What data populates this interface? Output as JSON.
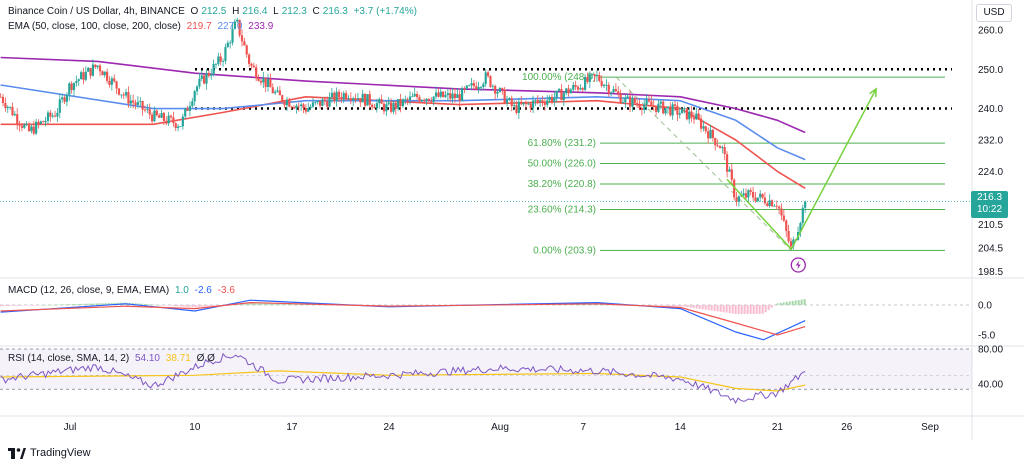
{
  "header": {
    "symbol": "Binance Coin / US Dollar, 4h, BINANCE",
    "o_label": "O",
    "o": "212.5",
    "h_label": "H",
    "h": "216.4",
    "l_label": "L",
    "l": "212.3",
    "c_label": "C",
    "c": "216.3",
    "change": "+3.7 (+1.74%)"
  },
  "ema_legend": {
    "label": "EMA (50, close, 100, close, 200, close)",
    "v50": "219.7",
    "v100": "227.0",
    "v200": "233.9"
  },
  "macd_legend": {
    "label": "MACD (12, 26, close, 9, EMA, EMA)",
    "hist": "1.0",
    "macd": "-2.6",
    "signal": "-3.6"
  },
  "rsi_legend": {
    "label": "RSI (14, close, SMA, 14, 2)",
    "rsi": "54.10",
    "ma": "38.71",
    "extra": "Ø Ø"
  },
  "currency_button": "USD",
  "last_price": "216.3",
  "countdown": "10:22",
  "branding": "TradingView",
  "colors": {
    "up": "#26a69a",
    "down": "#ef5350",
    "ema50": "#ef5350",
    "ema100": "#5b8def",
    "ema200": "#9c27b0",
    "fib": "#4caf50",
    "projection": "#76d13c"
  },
  "chart_data": {
    "type": "line",
    "title": "Binance Coin / US Dollar, 4h, BINANCE",
    "xlabel": "",
    "ylabel": "",
    "x_ticks": [
      "Jul",
      "10",
      "17",
      "24",
      "Aug",
      "7",
      "14",
      "21",
      "26",
      "Sep"
    ],
    "y_ticks": [
      "260.0",
      "250.0",
      "240.0",
      "232.0",
      "224.0",
      "216.3",
      "210.5",
      "204.5",
      "198.5"
    ],
    "ylim": [
      198.5,
      262
    ],
    "price_path": [
      {
        "d": "Jun 26",
        "c": 243
      },
      {
        "d": "Jun 28",
        "c": 234
      },
      {
        "d": "Jun 30",
        "c": 239
      },
      {
        "d": "Jul 1",
        "c": 246
      },
      {
        "d": "Jul 3",
        "c": 251
      },
      {
        "d": "Jul 5",
        "c": 243
      },
      {
        "d": "Jul 7",
        "c": 238
      },
      {
        "d": "Jul 9",
        "c": 236
      },
      {
        "d": "Jul 10",
        "c": 245
      },
      {
        "d": "Jul 12",
        "c": 253
      },
      {
        "d": "Jul 13",
        "c": 262
      },
      {
        "d": "Jul 14",
        "c": 251
      },
      {
        "d": "Jul 16",
        "c": 243
      },
      {
        "d": "Jul 18",
        "c": 240
      },
      {
        "d": "Jul 21",
        "c": 244
      },
      {
        "d": "Jul 24",
        "c": 240
      },
      {
        "d": "Jul 26",
        "c": 243
      },
      {
        "d": "Jul 29",
        "c": 243
      },
      {
        "d": "Jul 31",
        "c": 248
      },
      {
        "d": "Aug 2",
        "c": 240
      },
      {
        "d": "Aug 5",
        "c": 243
      },
      {
        "d": "Aug 8",
        "c": 248
      },
      {
        "d": "Aug 10",
        "c": 242
      },
      {
        "d": "Aug 13",
        "c": 240
      },
      {
        "d": "Aug 15",
        "c": 238
      },
      {
        "d": "Aug 17",
        "c": 230
      },
      {
        "d": "Aug 18",
        "c": 217
      },
      {
        "d": "Aug 19",
        "c": 218
      },
      {
        "d": "Aug 21",
        "c": 216
      },
      {
        "d": "Aug 22",
        "c": 204
      },
      {
        "d": "Aug 23",
        "c": 216.3
      }
    ],
    "series": [
      {
        "name": "EMA 50",
        "values": [
          {
            "d": "Jun 26",
            "v": 236
          },
          {
            "d": "Jul 7",
            "v": 236
          },
          {
            "d": "Jul 12",
            "v": 239
          },
          {
            "d": "Jul 18",
            "v": 243
          },
          {
            "d": "Jul 29",
            "v": 241
          },
          {
            "d": "Aug 8",
            "v": 242
          },
          {
            "d": "Aug 14",
            "v": 240
          },
          {
            "d": "Aug 18",
            "v": 232
          },
          {
            "d": "Aug 21",
            "v": 224
          },
          {
            "d": "Aug 23",
            "v": 219.7
          }
        ]
      },
      {
        "name": "EMA 100",
        "values": [
          {
            "d": "Jun 26",
            "v": 246
          },
          {
            "d": "Jul 7",
            "v": 240
          },
          {
            "d": "Jul 12",
            "v": 240
          },
          {
            "d": "Jul 18",
            "v": 242
          },
          {
            "d": "Jul 29",
            "v": 242
          },
          {
            "d": "Aug 8",
            "v": 243
          },
          {
            "d": "Aug 14",
            "v": 242
          },
          {
            "d": "Aug 18",
            "v": 237
          },
          {
            "d": "Aug 21",
            "v": 230
          },
          {
            "d": "Aug 23",
            "v": 227.0
          }
        ]
      },
      {
        "name": "EMA 200",
        "values": [
          {
            "d": "Jun 26",
            "v": 253
          },
          {
            "d": "Jul 3",
            "v": 252
          },
          {
            "d": "Jul 10",
            "v": 249
          },
          {
            "d": "Jul 18",
            "v": 247
          },
          {
            "d": "Jul 29",
            "v": 245
          },
          {
            "d": "Aug 8",
            "v": 244
          },
          {
            "d": "Aug 14",
            "v": 243
          },
          {
            "d": "Aug 18",
            "v": 240
          },
          {
            "d": "Aug 21",
            "v": 237
          },
          {
            "d": "Aug 23",
            "v": 233.9
          }
        ]
      }
    ],
    "fib_levels": [
      {
        "label": "100.00% (248.0)",
        "v": 248.0
      },
      {
        "label": "61.80% (231.2)",
        "v": 231.2
      },
      {
        "label": "50.00% (226.0)",
        "v": 226.0
      },
      {
        "label": "38.20% (220.8)",
        "v": 220.8
      },
      {
        "label": "23.60% (214.3)",
        "v": 214.3
      },
      {
        "label": "0.00% (203.9)",
        "v": 203.9
      }
    ],
    "resistance_lines": [
      250.0,
      240.0
    ],
    "projection": [
      {
        "d": "Aug 22",
        "v": 204.2
      },
      {
        "d": "Aug 31",
        "v": 245
      }
    ],
    "macd": {
      "ylim": [
        -7,
        2
      ],
      "y_ticks": [
        "0.0",
        "-5.0"
      ],
      "macd_line": [
        {
          "d": "Jun 26",
          "v": -1.2
        },
        {
          "d": "Jul 5",
          "v": 0.2
        },
        {
          "d": "Jul 10",
          "v": -1.0
        },
        {
          "d": "Jul 14",
          "v": 0.8
        },
        {
          "d": "Jul 24",
          "v": -0.3
        },
        {
          "d": "Aug 8",
          "v": 0.4
        },
        {
          "d": "Aug 14",
          "v": -0.6
        },
        {
          "d": "Aug 18",
          "v": -4.5
        },
        {
          "d": "Aug 20",
          "v": -5.8
        },
        {
          "d": "Aug 23",
          "v": -2.6
        }
      ],
      "signal_line": [
        {
          "d": "Jun 26",
          "v": -1.0
        },
        {
          "d": "Jul 5",
          "v": -0.2
        },
        {
          "d": "Jul 10",
          "v": -0.6
        },
        {
          "d": "Jul 14",
          "v": 0.4
        },
        {
          "d": "Jul 24",
          "v": -0.2
        },
        {
          "d": "Aug 8",
          "v": 0.2
        },
        {
          "d": "Aug 14",
          "v": -0.4
        },
        {
          "d": "Aug 18",
          "v": -3.0
        },
        {
          "d": "Aug 21",
          "v": -5.0
        },
        {
          "d": "Aug 23",
          "v": -3.6
        }
      ]
    },
    "rsi": {
      "ylim": [
        20,
        85
      ],
      "y_ticks": [
        "80.00",
        "40.00"
      ],
      "bands": [
        70,
        30
      ],
      "rsi_line": [
        {
          "d": "Jun 26",
          "v": 45
        },
        {
          "d": "Jul 3",
          "v": 60
        },
        {
          "d": "Jul 7",
          "v": 38
        },
        {
          "d": "Jul 11",
          "v": 66
        },
        {
          "d": "Jul 13",
          "v": 74
        },
        {
          "d": "Jul 16",
          "v": 44
        },
        {
          "d": "Jul 24",
          "v": 50
        },
        {
          "d": "Aug 1",
          "v": 58
        },
        {
          "d": "Aug 8",
          "v": 55
        },
        {
          "d": "Aug 14",
          "v": 46
        },
        {
          "d": "Aug 18",
          "v": 22
        },
        {
          "d": "Aug 21",
          "v": 30
        },
        {
          "d": "Aug 23",
          "v": 54.1
        }
      ],
      "ma_line": [
        {
          "d": "Jun 26",
          "v": 48
        },
        {
          "d": "Jul 10",
          "v": 50
        },
        {
          "d": "Jul 16",
          "v": 55
        },
        {
          "d": "Jul 24",
          "v": 50
        },
        {
          "d": "Aug 8",
          "v": 52
        },
        {
          "d": "Aug 14",
          "v": 48
        },
        {
          "d": "Aug 18",
          "v": 35
        },
        {
          "d": "Aug 21",
          "v": 32
        },
        {
          "d": "Aug 23",
          "v": 38.71
        }
      ]
    }
  }
}
